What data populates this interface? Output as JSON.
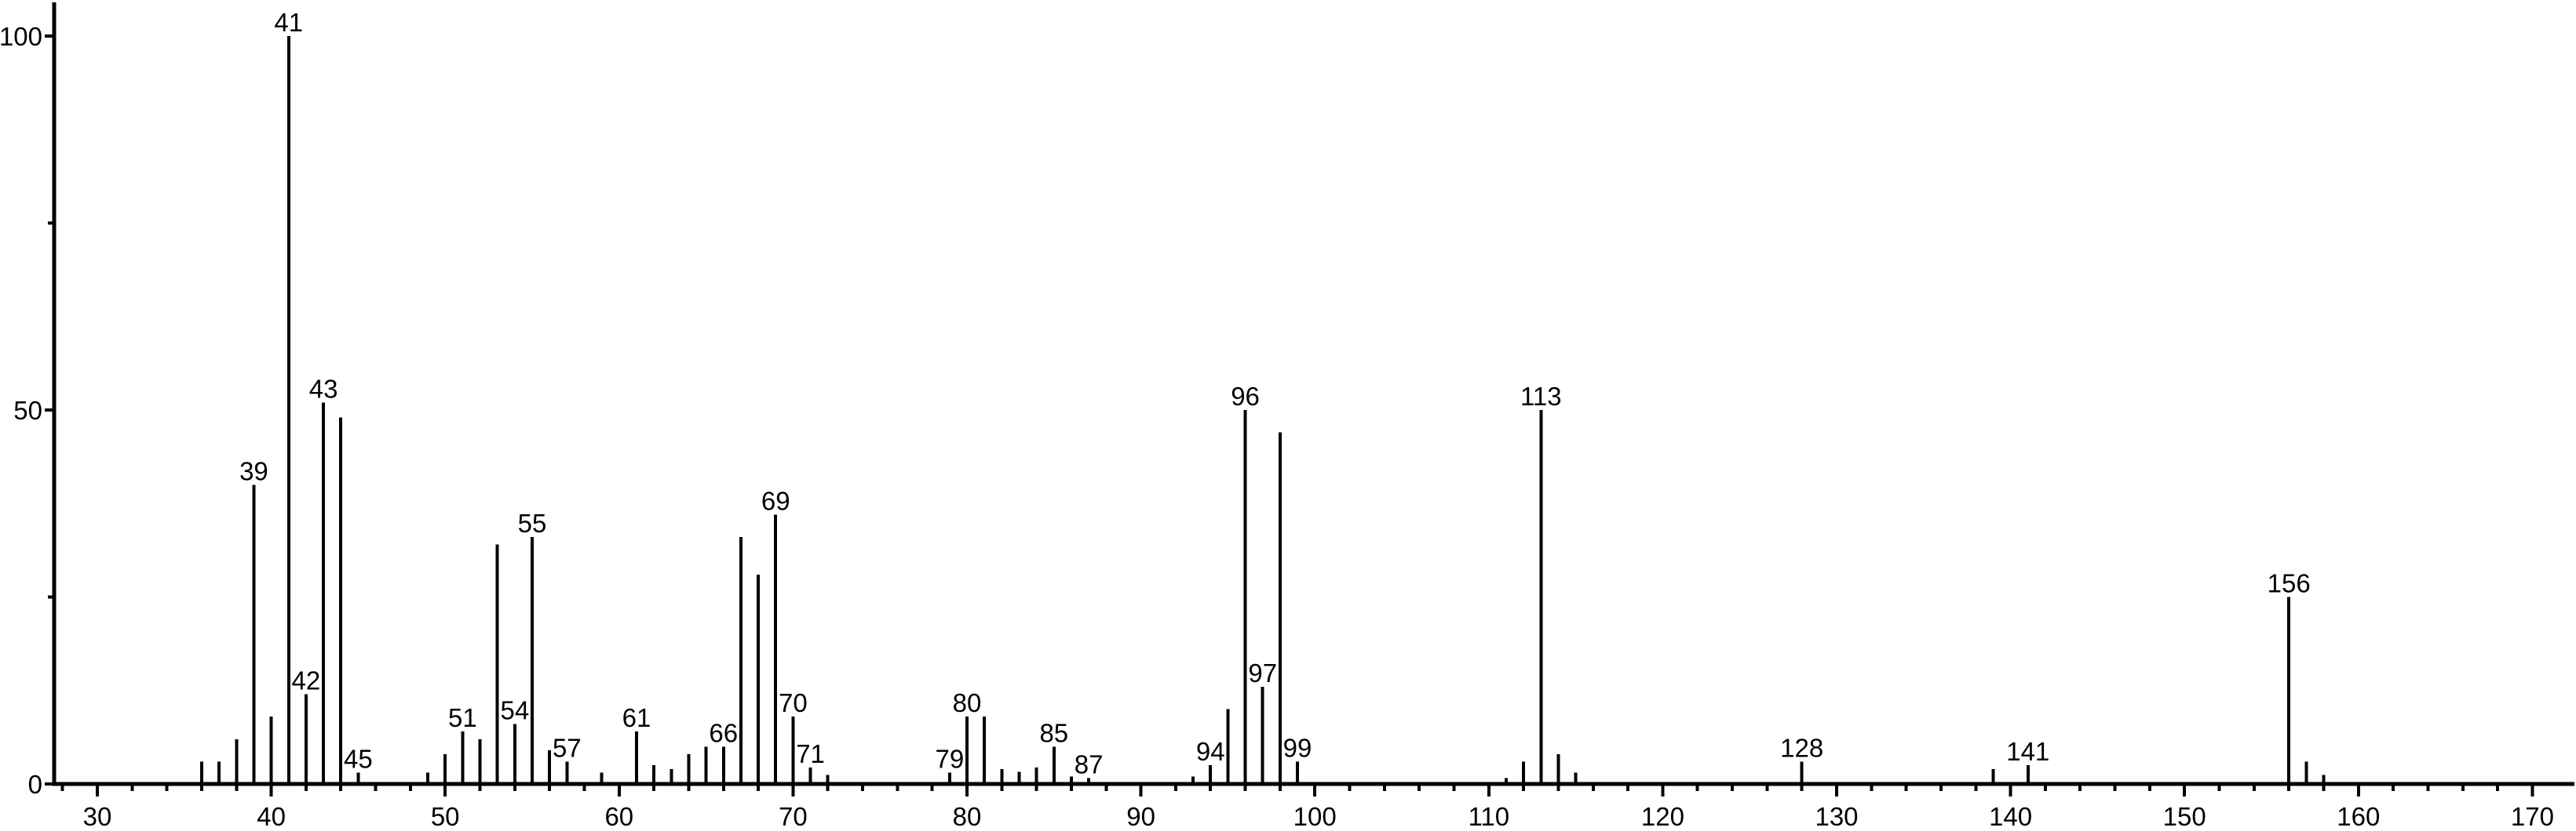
{
  "chart_data": {
    "type": "bar",
    "chart_kind": "mass-spectrum",
    "title": "",
    "xlabel": "",
    "ylabel": "",
    "legend": "none",
    "grid": false,
    "colors": {
      "foreground": "#000000",
      "background": "#ffffff"
    },
    "x_axis": {
      "min": 27.5,
      "max": 172.4,
      "major_ticks": [
        30,
        40,
        50,
        60,
        70,
        80,
        90,
        100,
        110,
        120,
        130,
        140,
        150,
        160,
        170
      ],
      "minor_ticks": [
        28,
        32,
        34,
        36,
        38,
        42,
        44,
        46,
        48,
        52,
        54,
        56,
        58,
        62,
        64,
        66,
        68,
        72,
        74,
        76,
        78,
        82,
        84,
        86,
        88,
        92,
        94,
        96,
        98,
        102,
        104,
        106,
        108,
        112,
        114,
        116,
        118,
        122,
        124,
        126,
        128,
        132,
        134,
        136,
        138,
        142,
        144,
        146,
        148,
        152,
        154,
        156,
        158,
        162,
        164,
        166,
        168
      ]
    },
    "y_axis": {
      "min": 0,
      "max": 104,
      "major_ticks": [
        0,
        50,
        100
      ],
      "minor_ticks": [
        25,
        75
      ]
    },
    "peaks": [
      {
        "mz": 36,
        "intensity": 3
      },
      {
        "mz": 37,
        "intensity": 3
      },
      {
        "mz": 38,
        "intensity": 6
      },
      {
        "mz": 39,
        "intensity": 40,
        "label": "39"
      },
      {
        "mz": 40,
        "intensity": 9
      },
      {
        "mz": 41,
        "intensity": 100,
        "label": "41"
      },
      {
        "mz": 42,
        "intensity": 12,
        "label": "42"
      },
      {
        "mz": 43,
        "intensity": 51,
        "label": "43"
      },
      {
        "mz": 44,
        "intensity": 49
      },
      {
        "mz": 45,
        "intensity": 1.5,
        "label": "45"
      },
      {
        "mz": 49,
        "intensity": 1.5
      },
      {
        "mz": 50,
        "intensity": 4
      },
      {
        "mz": 51,
        "intensity": 7,
        "label": "51"
      },
      {
        "mz": 52,
        "intensity": 6
      },
      {
        "mz": 53,
        "intensity": 32
      },
      {
        "mz": 54,
        "intensity": 8,
        "label": "54"
      },
      {
        "mz": 55,
        "intensity": 33,
        "label": "55"
      },
      {
        "mz": 56,
        "intensity": 4.5
      },
      {
        "mz": 57,
        "intensity": 3,
        "label": "57"
      },
      {
        "mz": 59,
        "intensity": 1.5
      },
      {
        "mz": 61,
        "intensity": 7,
        "label": "61"
      },
      {
        "mz": 62,
        "intensity": 2.5
      },
      {
        "mz": 63,
        "intensity": 2
      },
      {
        "mz": 64,
        "intensity": 4
      },
      {
        "mz": 65,
        "intensity": 5
      },
      {
        "mz": 66,
        "intensity": 5,
        "label": "66"
      },
      {
        "mz": 67,
        "intensity": 33
      },
      {
        "mz": 68,
        "intensity": 28
      },
      {
        "mz": 69,
        "intensity": 36,
        "label": "69"
      },
      {
        "mz": 70,
        "intensity": 9,
        "label": "70"
      },
      {
        "mz": 71,
        "intensity": 2.2,
        "label": "71"
      },
      {
        "mz": 72,
        "intensity": 1.2
      },
      {
        "mz": 79,
        "intensity": 1.5,
        "label": "79"
      },
      {
        "mz": 80,
        "intensity": 9,
        "label": "80"
      },
      {
        "mz": 81,
        "intensity": 9
      },
      {
        "mz": 82,
        "intensity": 2
      },
      {
        "mz": 83,
        "intensity": 1.6
      },
      {
        "mz": 84,
        "intensity": 2.2
      },
      {
        "mz": 85,
        "intensity": 5,
        "label": "85"
      },
      {
        "mz": 86,
        "intensity": 1
      },
      {
        "mz": 87,
        "intensity": 0.8,
        "label": "87"
      },
      {
        "mz": 93,
        "intensity": 1
      },
      {
        "mz": 94,
        "intensity": 2.5,
        "label": "94"
      },
      {
        "mz": 95,
        "intensity": 10
      },
      {
        "mz": 96,
        "intensity": 50,
        "label": "96"
      },
      {
        "mz": 97,
        "intensity": 13,
        "label": "97"
      },
      {
        "mz": 98,
        "intensity": 47
      },
      {
        "mz": 99,
        "intensity": 3,
        "label": "99"
      },
      {
        "mz": 111,
        "intensity": 0.8
      },
      {
        "mz": 112,
        "intensity": 3
      },
      {
        "mz": 113,
        "intensity": 50,
        "label": "113"
      },
      {
        "mz": 114,
        "intensity": 4
      },
      {
        "mz": 115,
        "intensity": 1.5
      },
      {
        "mz": 128,
        "intensity": 3,
        "label": "128"
      },
      {
        "mz": 139,
        "intensity": 2
      },
      {
        "mz": 141,
        "intensity": 2.5,
        "label": "141"
      },
      {
        "mz": 156,
        "intensity": 25,
        "label": "156"
      },
      {
        "mz": 157,
        "intensity": 3
      },
      {
        "mz": 158,
        "intensity": 1.2
      }
    ]
  }
}
